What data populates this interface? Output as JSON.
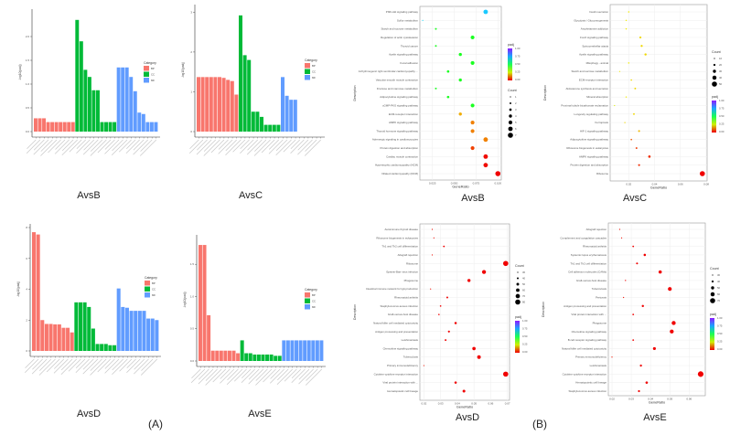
{
  "figure": {
    "label_a": "(A)",
    "label_b": "(B)"
  },
  "chart_data": [
    {
      "type": "bar",
      "title": "AvsB",
      "ylabel": "-log10(padj)",
      "ylim": [
        0,
        2.5
      ],
      "yticks": [
        0,
        0.5,
        1,
        1.5,
        2
      ],
      "ytick_labels": [
        "0.0",
        "0.5",
        "1.0",
        "1.5",
        "2.0"
      ],
      "legend_title": "Category",
      "colors": {
        "BP": "#f8766d",
        "CC": "#00ba38",
        "MF": "#619cff"
      },
      "series": [
        {
          "name": "BP",
          "values": [
            0.28,
            0.28,
            0.28,
            0.2,
            0.2,
            0.2,
            0.2,
            0.2,
            0.2,
            0.2
          ]
        },
        {
          "name": "CC",
          "values": [
            2.35,
            1.9,
            1.3,
            1.15,
            0.87,
            0.87,
            0.2,
            0.2,
            0.2,
            0.2
          ]
        },
        {
          "name": "MF",
          "values": [
            1.35,
            1.35,
            1.35,
            1.15,
            0.85,
            0.4,
            0.37,
            0.2,
            0.2,
            0.2
          ]
        }
      ]
    },
    {
      "type": "bar",
      "title": "AvsC",
      "ylabel": "-log10(padj)",
      "ylim": [
        0,
        3.1
      ],
      "yticks": [
        0,
        1,
        2,
        3
      ],
      "ytick_labels": [
        "0",
        "1",
        "2",
        "3"
      ],
      "legend_title": "Category",
      "colors": {
        "BP": "#f8766d",
        "CC": "#00ba38",
        "MF": "#619cff"
      },
      "series": [
        {
          "name": "BP",
          "values": [
            1.37,
            1.37,
            1.37,
            1.37,
            1.37,
            1.37,
            1.35,
            1.3,
            1.27,
            0.93
          ]
        },
        {
          "name": "CC",
          "values": [
            2.92,
            1.92,
            1.8,
            0.5,
            0.5,
            0.37,
            0.17,
            0.17,
            0.17,
            0.17
          ]
        },
        {
          "name": "MF",
          "values": [
            1.37,
            0.9,
            0.8,
            0.8,
            0,
            0,
            0,
            0,
            0,
            0
          ]
        }
      ]
    },
    {
      "type": "bar",
      "title": "AvsD",
      "ylabel": "-log10(padj)",
      "ylim": [
        0,
        8
      ],
      "yticks": [
        0,
        2,
        4,
        6,
        8
      ],
      "ytick_labels": [
        "0",
        "2",
        "4",
        "6",
        "8"
      ],
      "legend_title": "Category",
      "colors": {
        "BP": "#f8766d",
        "CC": "#00ba38",
        "MF": "#619cff"
      },
      "series": [
        {
          "name": "BP",
          "values": [
            7.7,
            7.55,
            2.0,
            1.75,
            1.75,
            1.72,
            1.72,
            1.5,
            1.5,
            1.2
          ]
        },
        {
          "name": "CC",
          "values": [
            3.15,
            3.15,
            3.15,
            2.85,
            1.45,
            0.45,
            0.45,
            0.45,
            0.37,
            0.37
          ]
        },
        {
          "name": "MF",
          "values": [
            4.05,
            2.85,
            2.8,
            2.6,
            2.6,
            2.6,
            2.6,
            2.1,
            2.1,
            2.0
          ]
        }
      ]
    },
    {
      "type": "bar",
      "title": "AvsE",
      "ylabel": "-log10(padj)",
      "ylim": [
        0,
        1.9
      ],
      "yticks": [
        0,
        0.5,
        1,
        1.5
      ],
      "ytick_labels": [
        "0.0",
        "0.5",
        "1.0",
        "1.5"
      ],
      "legend_title": "Category",
      "colors": {
        "BP": "#f8766d",
        "CC": "#00ba38",
        "MF": "#619cff"
      },
      "series": [
        {
          "name": "BP",
          "values": [
            1.8,
            1.8,
            0.71,
            0.16,
            0.16,
            0.16,
            0.16,
            0.16,
            0.16,
            0.12
          ]
        },
        {
          "name": "CC",
          "values": [
            0.32,
            0.12,
            0.12,
            0.1,
            0.1,
            0.1,
            0.1,
            0.1,
            0.08,
            0.08
          ]
        },
        {
          "name": "MF",
          "values": [
            0.32,
            0.32,
            0.32,
            0.32,
            0.32,
            0.32,
            0.32,
            0.32,
            0.32,
            0.32
          ]
        }
      ]
    },
    {
      "type": "scatter",
      "title": "AvsB",
      "xlabel": "GeneRatio",
      "ylabel": "Description",
      "xticks": [
        0.025,
        0.05,
        0.075,
        0.1
      ],
      "xtick_labels": [
        "0.025",
        "0.050",
        "0.075",
        "0.100"
      ],
      "color_legend_title": "padj",
      "color_ticks": [
        "1.00",
        "0.75",
        "0.50",
        "0.25",
        "0.00"
      ],
      "size_legend_title": "Count",
      "size_legend_values": [
        1,
        2,
        3,
        4,
        5,
        6,
        7
      ],
      "descriptions": [
        "PI3K-Akt signaling pathway",
        "Sulfur metabolism",
        "Starch and sucrose metabolism",
        "Regulation of actin cytoskeleton",
        "Thyroid cancer",
        "Apelin signaling pathway",
        "Focal adhesion",
        "Arrhythmogenic right ventricular cardiomyopathy ...",
        "Vascular smooth muscle contraction",
        "Fructose and mannose metabolism",
        "Adipocytokine signaling pathway",
        "cGMP-PKG signaling pathway",
        "ECM-receptor interaction",
        "AMPK signaling pathway",
        "Thyroid hormone signaling pathway",
        "Adrenergic signaling in cardiomyocytes",
        "Protein digestion and absorption",
        "Cardiac muscle contraction",
        "Hypertrophic cardiomyopathy (HCM)",
        "Dilated cardiomyopathy (DCM)"
      ],
      "gene_ratio": [
        0.086,
        0.014,
        0.029,
        0.071,
        0.029,
        0.057,
        0.071,
        0.043,
        0.057,
        0.029,
        0.043,
        0.071,
        0.057,
        0.071,
        0.071,
        0.086,
        0.071,
        0.086,
        0.086,
        0.1
      ],
      "count": [
        6,
        1,
        2,
        5,
        2,
        4,
        5,
        3,
        4,
        2,
        3,
        5,
        4,
        5,
        5,
        6,
        5,
        6,
        6,
        7
      ],
      "padj": [
        0.72,
        0.7,
        0.45,
        0.45,
        0.45,
        0.45,
        0.45,
        0.45,
        0.45,
        0.45,
        0.45,
        0.45,
        0.16,
        0.12,
        0.12,
        0.12,
        0.06,
        0.01,
        0.01,
        0.0
      ]
    },
    {
      "type": "scatter",
      "title": "AvsC",
      "xlabel": "GeneRatio",
      "ylabel": "Description",
      "xticks": [
        0.02,
        0.04,
        0.06,
        0.08
      ],
      "xtick_labels": [
        "0.02",
        "0.04",
        "0.06",
        "0.08"
      ],
      "color_legend_title": "padj",
      "color_ticks": [
        "1.00",
        "0.75",
        "0.50",
        "0.25",
        "0.00"
      ],
      "size_legend_title": "Count",
      "size_legend_values": [
        10,
        20,
        30,
        40,
        50
      ],
      "descriptions": [
        "Insulin secretion",
        "Glycolysis / Gluconeogenesis",
        "Amphetamine addiction",
        "FoxO signaling pathway",
        "Spinocerebellar ataxia",
        "Apelin signaling pathway",
        "Mitophagy - animal",
        "Starch and sucrose metabolism",
        "ECM-receptor interaction",
        "Aldosterone synthesis and secretion",
        "Mineral absorption",
        "Proximal tubule bicarbonate reclamation",
        "Longevity regulating pathway",
        "Ferroptosis",
        "HIF-1 signaling pathway",
        "Adipocytokine signaling pathway",
        "Ribosome biogenesis in eukaryotes",
        "AMPK signaling pathway",
        "Protein digestion and absorption",
        "Ribosome"
      ],
      "gene_ratio": [
        0.02,
        0.018,
        0.018,
        0.029,
        0.03,
        0.033,
        0.02,
        0.013,
        0.022,
        0.025,
        0.018,
        0.009,
        0.024,
        0.017,
        0.028,
        0.022,
        0.026,
        0.036,
        0.028,
        0.077
      ],
      "count": [
        13,
        12,
        12,
        19,
        20,
        21,
        13,
        8,
        14,
        16,
        12,
        6,
        16,
        11,
        18,
        14,
        17,
        23,
        18,
        50
      ],
      "padj": [
        0.22,
        0.22,
        0.22,
        0.2,
        0.2,
        0.2,
        0.22,
        0.22,
        0.2,
        0.2,
        0.22,
        0.24,
        0.2,
        0.2,
        0.17,
        0.08,
        0.05,
        0.04,
        0.04,
        0.0
      ]
    },
    {
      "type": "scatter",
      "title": "AvsD",
      "xlabel": "GeneRatio",
      "ylabel": "Description",
      "xticks": [
        0.02,
        0.03,
        0.04,
        0.05,
        0.06,
        0.07
      ],
      "xtick_labels": [
        "0.02",
        "0.03",
        "0.04",
        "0.05",
        "0.06",
        "0.07"
      ],
      "color_legend_title": "padj",
      "color_ticks": [
        "1.00",
        "0.75",
        "0.50",
        "0.25",
        "0.00"
      ],
      "size_legend_title": "Count",
      "size_legend_values": [
        30,
        40,
        50,
        60,
        70,
        80
      ],
      "descriptions": [
        "Autoimmune thyroid disease",
        "Ribosome biogenesis in eukaryotes",
        "Th1 and Th2 cell differentiation",
        "Allograft rejection",
        "Ribosome",
        "Epstein-Barr virus infection",
        "Phagosome",
        "Intestinal immune network for IgA production",
        "Rheumatoid arthritis",
        "Staphylococcus aureus infection",
        "Graft-versus-host disease",
        "Natural killer cell mediated cytotoxicity",
        "Antigen processing and presentation",
        "Leishmaniasis",
        "Chemokine signaling pathway",
        "Tuberculosis",
        "Primary immunodeficiency",
        "Cytokine-cytokine receptor interaction",
        "Viral protein interaction with ...",
        "Hematopoietic cell lineage"
      ],
      "gene_ratio": [
        0.025,
        0.026,
        0.032,
        0.025,
        0.069,
        0.056,
        0.047,
        0.024,
        0.034,
        0.03,
        0.029,
        0.039,
        0.035,
        0.033,
        0.05,
        0.053,
        0.02,
        0.069,
        0.039,
        0.044
      ],
      "count": [
        29,
        30,
        37,
        29,
        80,
        65,
        55,
        28,
        39,
        35,
        34,
        45,
        41,
        38,
        58,
        61,
        23,
        80,
        45,
        51
      ],
      "padj": [
        0.01,
        0.01,
        0.0,
        0.01,
        0.0,
        0.0,
        0.0,
        0.01,
        0.0,
        0.0,
        0.0,
        0.0,
        0.0,
        0.0,
        0.0,
        0.0,
        0.02,
        0.0,
        0.0,
        0.0
      ]
    },
    {
      "type": "scatter",
      "title": "AvsE",
      "xlabel": "GeneRatio",
      "ylabel": "Description",
      "xticks": [
        0.02,
        0.03,
        0.04,
        0.05,
        0.06
      ],
      "xtick_labels": [
        "0.02",
        "0.03",
        "0.04",
        "0.05",
        "0.06"
      ],
      "color_legend_title": "padj",
      "color_ticks": [
        "1.00",
        "0.75",
        "0.50",
        "0.25",
        "0.00"
      ],
      "size_legend_title": "Count",
      "size_legend_values": [
        30,
        40,
        50,
        60,
        70
      ],
      "descriptions": [
        "Allograft rejection",
        "Complement and coagulation cascades",
        "Rheumatoid arthritis",
        "Systemic lupus erythematosus",
        "Th1 and Th2 cell differentiation",
        "Cell adhesion molecules (CAMs)",
        "Graft-versus-host disease",
        "Tuberculosis",
        "Pertussis",
        "Antigen processing and presentation",
        "Viral protein interaction with ...",
        "Phagosome",
        "Chemokine signaling pathway",
        "B cell receptor signaling pathway",
        "Natural killer cell mediated cytotoxicity",
        "Primary immunodeficiency",
        "Leishmaniasis",
        "Cytokine-cytokine receptor interaction",
        "Hematopoietic cell lineage",
        "Staphylococcus aureus infection"
      ],
      "gene_ratio": [
        0.024,
        0.025,
        0.031,
        0.037,
        0.033,
        0.045,
        0.027,
        0.05,
        0.026,
        0.036,
        0.031,
        0.052,
        0.051,
        0.031,
        0.042,
        0.02,
        0.035,
        0.066,
        0.038,
        0.034
      ],
      "count": [
        27,
        29,
        35,
        42,
        38,
        51,
        31,
        57,
        30,
        41,
        35,
        59,
        58,
        35,
        48,
        23,
        40,
        75,
        43,
        39
      ],
      "padj": [
        0.01,
        0.01,
        0.0,
        0.0,
        0.0,
        0.0,
        0.0,
        0.0,
        0.01,
        0.0,
        0.0,
        0.0,
        0.0,
        0.0,
        0.0,
        0.02,
        0.0,
        0.0,
        0.0,
        0.0
      ]
    }
  ]
}
